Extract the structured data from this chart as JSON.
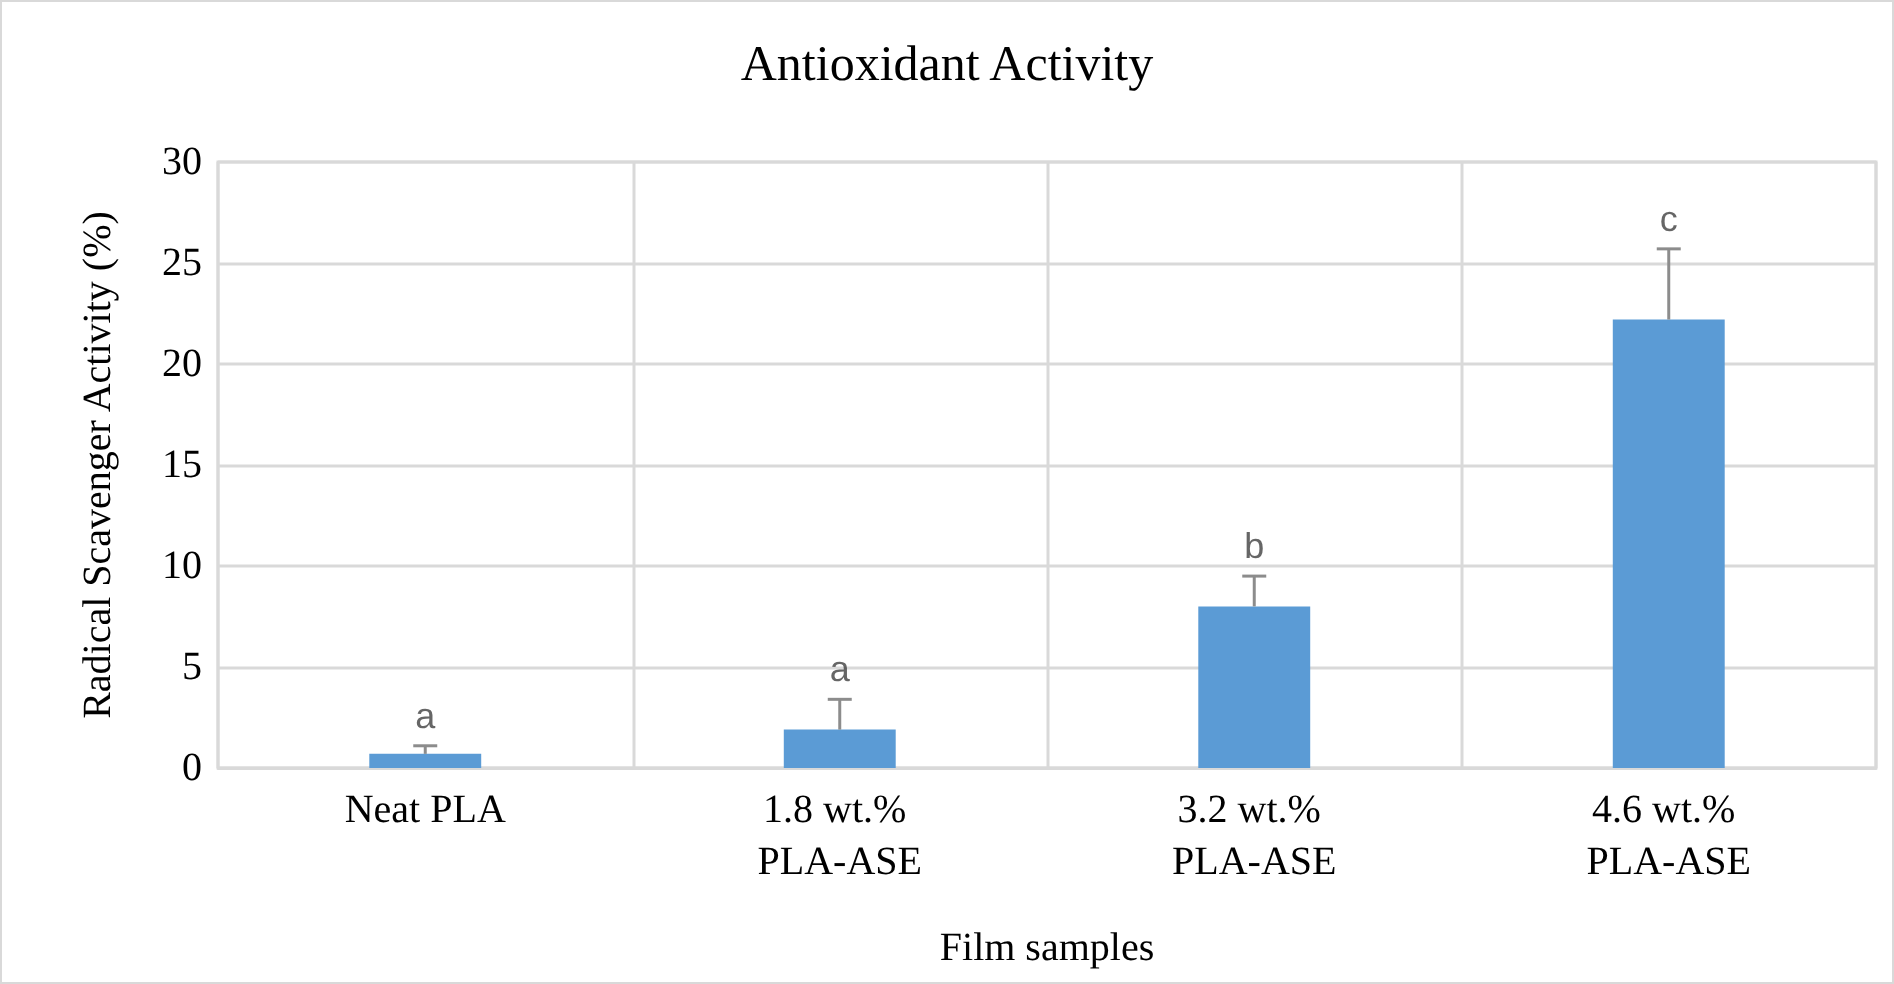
{
  "chart_data": {
    "type": "bar",
    "title": "Antioxidant Activity",
    "xlabel": "Film samples",
    "ylabel": "Radical Scavenger Activity (%)",
    "categories": [
      "Neat PLA",
      "1.8 wt.% PLA-ASE",
      "3.2 wt.% PLA-ASE",
      "4.6 wt.% PLA-ASE"
    ],
    "values": [
      0.7,
      1.9,
      8.0,
      22.2
    ],
    "color": "#5b9bd5",
    "errors": [
      [
        0.7,
        1.1
      ],
      [
        1.9,
        3.4
      ],
      [
        8.0,
        9.5
      ],
      [
        22.2,
        25.7
      ]
    ],
    "ylim": [
      0,
      30
    ],
    "yticks": [
      0,
      5,
      10,
      15,
      20,
      25,
      30
    ],
    "grid": true,
    "annotations": [
      "a",
      "a",
      "b",
      "c"
    ]
  }
}
